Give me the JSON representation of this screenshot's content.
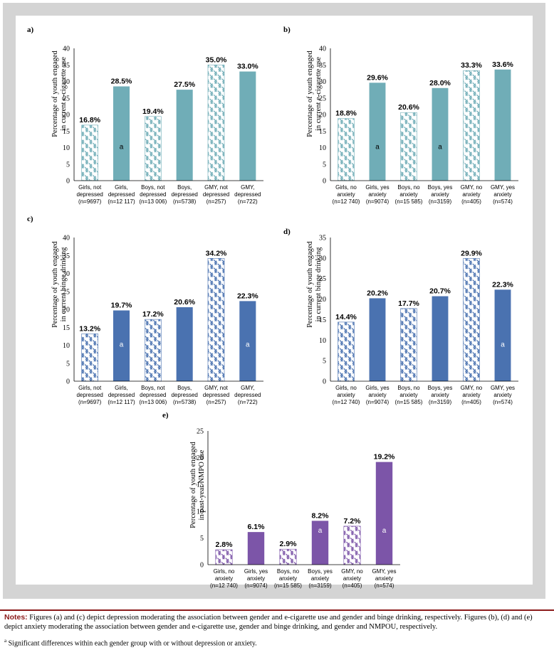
{
  "colors": {
    "teal": "#70adb7",
    "blue": "#4a72b0",
    "purple": "#7c55a8",
    "frame": "#d4d4d4",
    "notes_red": "#8b1a1a"
  },
  "notes": {
    "lead": "Notes:",
    "text": " Figures (a) and (c) depict depression moderating the association between gender and e-cigarette use and gender and binge drinking, respectively. Figures (b), (d) and (e) depict anxiety moderating the association between gender and e-cigarette use, gender and binge drinking, and gender and NMPOU, respectively.",
    "footnote_mark": "a",
    "footnote": " Significant differences within each gender group with or without depression or anxiety."
  },
  "chart_data": [
    {
      "panel": "a)",
      "type": "bar",
      "color": "teal",
      "ylabel": [
        "Percentage of youth engaged",
        "in current e-cigarette use"
      ],
      "ylim": [
        0,
        40
      ],
      "yticks": [
        0,
        5,
        10,
        15,
        20,
        25,
        30,
        35,
        40
      ],
      "categories": [
        [
          "Girls, not",
          "depressed",
          "(n=9697)"
        ],
        [
          "Girls,",
          "depressed",
          "(n=12 117)"
        ],
        [
          "Boys, not",
          "depressed",
          "(n=13 006)"
        ],
        [
          "Boys,",
          "depressed",
          "(n=5738)"
        ],
        [
          "GMY, not",
          "depressed",
          "(n=257)"
        ],
        [
          "GMY,",
          "depressed",
          "(n=722)"
        ]
      ],
      "values": [
        16.8,
        28.5,
        19.4,
        27.5,
        35.0,
        33.0
      ],
      "value_labels": [
        "16.8%",
        "28.5%",
        "19.4%",
        "27.5%",
        "35.0%",
        "33.0%"
      ],
      "hatched": [
        true,
        false,
        true,
        false,
        true,
        false
      ],
      "sig_marker": [
        "",
        "a",
        "",
        "",
        "",
        ""
      ]
    },
    {
      "panel": "b)",
      "type": "bar",
      "color": "teal",
      "ylabel": [
        "Percentage of youth engaged",
        "in current e-cigarette use"
      ],
      "ylim": [
        0,
        40
      ],
      "yticks": [
        0,
        5,
        10,
        15,
        20,
        25,
        30,
        35,
        40
      ],
      "categories": [
        [
          "Girls, no",
          "anxiety",
          "(n=12 740)"
        ],
        [
          "Girls, yes",
          "anxiety",
          "(n=9074)"
        ],
        [
          "Boys, no",
          "anxiety",
          "(n=15 585)"
        ],
        [
          "Boys, yes",
          "anxiety",
          "(n=3159)"
        ],
        [
          "GMY, no",
          "anxiety",
          "(n=405)"
        ],
        [
          "GMY, yes",
          "anxiety",
          "(n=574)"
        ]
      ],
      "values": [
        18.8,
        29.6,
        20.6,
        28.0,
        33.3,
        33.6
      ],
      "value_labels": [
        "18.8%",
        "29.6%",
        "20.6%",
        "28.0%",
        "33.3%",
        "33.6%"
      ],
      "hatched": [
        true,
        false,
        true,
        false,
        true,
        false
      ],
      "sig_marker": [
        "",
        "a",
        "",
        "a",
        "",
        ""
      ]
    },
    {
      "panel": "c)",
      "type": "bar",
      "color": "blue",
      "ylabel": [
        "Percentage of youth engaged",
        "in current binge drinking"
      ],
      "ylim": [
        0,
        40
      ],
      "yticks": [
        0,
        5,
        10,
        15,
        20,
        25,
        30,
        35,
        40
      ],
      "categories": [
        [
          "Girls, not",
          "depressed",
          "(n=9697)"
        ],
        [
          "Girls,",
          "depressed",
          "(n=12 117)"
        ],
        [
          "Boys, not",
          "depressed",
          "(n=13 006)"
        ],
        [
          "Boys,",
          "depressed",
          "(n=5738)"
        ],
        [
          "GMY, not",
          "depressed",
          "(n=257)"
        ],
        [
          "GMY,",
          "depressed",
          "(n=722)"
        ]
      ],
      "values": [
        13.2,
        19.7,
        17.2,
        20.6,
        34.2,
        22.3
      ],
      "value_labels": [
        "13.2%",
        "19.7%",
        "17.2%",
        "20.6%",
        "34.2%",
        "22.3%"
      ],
      "hatched": [
        true,
        false,
        true,
        false,
        true,
        false
      ],
      "sig_marker": [
        "",
        "a",
        "",
        "",
        "",
        "a"
      ]
    },
    {
      "panel": "d)",
      "type": "bar",
      "color": "blue",
      "ylabel": [
        "Percentage of youth engaged",
        "in current binge drinking"
      ],
      "ylim": [
        0,
        35
      ],
      "yticks": [
        0,
        5,
        10,
        15,
        20,
        25,
        30,
        35
      ],
      "categories": [
        [
          "Girls, no",
          "anxiety",
          "(n=12 740)"
        ],
        [
          "Girls, yes",
          "anxiety",
          "(n=9074)"
        ],
        [
          "Boys, no",
          "anxiety",
          "(n=15 585)"
        ],
        [
          "Boys, yes",
          "anxiety",
          "(n=3159)"
        ],
        [
          "GMY, no",
          "anxiety",
          "(n=405)"
        ],
        [
          "GMY, yes",
          "anxiety",
          "(n=574)"
        ]
      ],
      "values": [
        14.4,
        20.2,
        17.7,
        20.7,
        29.9,
        22.3
      ],
      "value_labels": [
        "14.4%",
        "20.2%",
        "17.7%",
        "20.7%",
        "29.9%",
        "22.3%"
      ],
      "hatched": [
        true,
        false,
        true,
        false,
        true,
        false
      ],
      "sig_marker": [
        "",
        "",
        "",
        "",
        "",
        "a"
      ]
    },
    {
      "panel": "e)",
      "type": "bar",
      "color": "purple",
      "ylabel": [
        "Percentage of youth engaged",
        "in past-year NMPO use"
      ],
      "ylim": [
        0,
        25
      ],
      "yticks": [
        0,
        5,
        10,
        15,
        20,
        25
      ],
      "categories": [
        [
          "Girls, no",
          "anxiety",
          "(n=12 740)"
        ],
        [
          "Girls, yes",
          "anxiety",
          "(n=9074)"
        ],
        [
          "Boys, no",
          "anxiety",
          "(n=15 585)"
        ],
        [
          "Boys, yes",
          "anxiety",
          "(n=3159)"
        ],
        [
          "GMY, no",
          "anxiety",
          "(n=405)"
        ],
        [
          "GMY, yes",
          "anxiety",
          "(n=574)"
        ]
      ],
      "values": [
        2.8,
        6.1,
        2.9,
        8.2,
        7.2,
        19.2
      ],
      "value_labels": [
        "2.8%",
        "6.1%",
        "2.9%",
        "8.2%",
        "7.2%",
        "19.2%"
      ],
      "hatched": [
        true,
        false,
        true,
        false,
        true,
        false
      ],
      "sig_marker": [
        "",
        "",
        "",
        "a",
        "",
        "a"
      ]
    }
  ]
}
